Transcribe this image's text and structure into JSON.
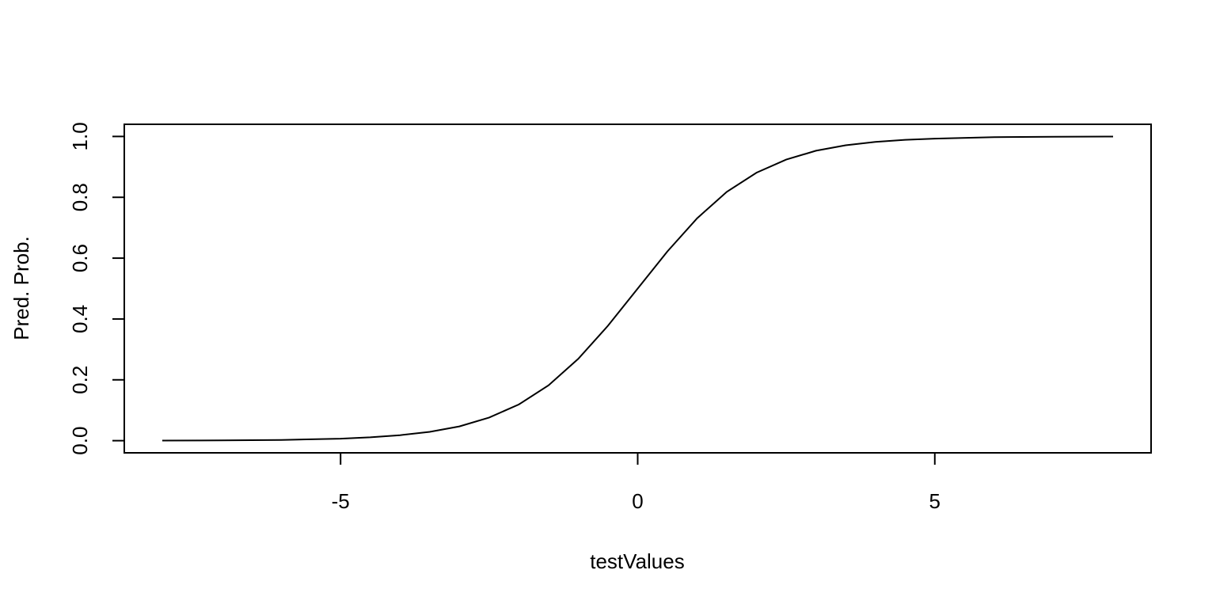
{
  "chart_data": {
    "type": "line",
    "title": "",
    "xlabel": "testValues",
    "ylabel": "Pred. Prob.",
    "xlim": [
      -8.64,
      8.64
    ],
    "ylim": [
      -0.04,
      1.04
    ],
    "x_ticks": [
      -5,
      0,
      5
    ],
    "x_tick_labels": [
      "-5",
      "0",
      "5"
    ],
    "y_ticks": [
      0.0,
      0.2,
      0.4,
      0.6,
      0.8,
      1.0
    ],
    "y_tick_labels": [
      "0.0",
      "0.2",
      "0.4",
      "0.6",
      "0.8",
      "1.0"
    ],
    "grid": false,
    "legend": "none",
    "line_color": "#000000",
    "series": [
      {
        "x": [
          -8,
          -7,
          -6,
          -5,
          -4.5,
          -4,
          -3.5,
          -3,
          -2.5,
          -2,
          -1.5,
          -1,
          -0.5,
          0,
          0.5,
          1,
          1.5,
          2,
          2.5,
          3,
          3.5,
          4,
          4.5,
          5,
          6,
          7,
          8
        ],
        "values": [
          0.0003,
          0.0009,
          0.0025,
          0.0067,
          0.011,
          0.018,
          0.029,
          0.047,
          0.076,
          0.119,
          0.182,
          0.269,
          0.378,
          0.5,
          0.622,
          0.731,
          0.818,
          0.881,
          0.924,
          0.953,
          0.971,
          0.982,
          0.989,
          0.993,
          0.9975,
          0.9991,
          0.9997
        ]
      }
    ]
  }
}
